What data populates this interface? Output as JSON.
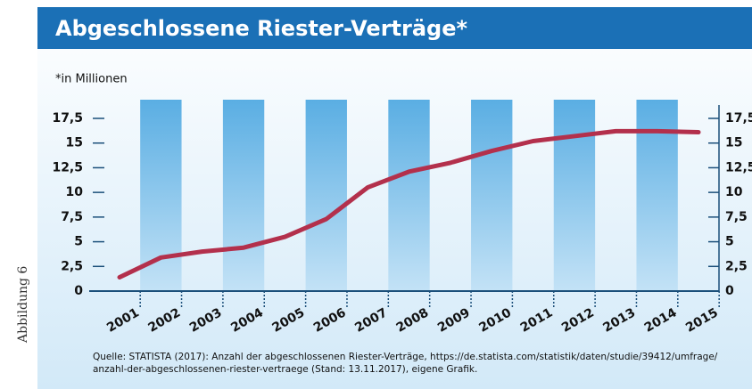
{
  "chart_data": {
    "type": "line",
    "title": "Abgeschlossene Riester-Verträge*",
    "subtitle": "*in Millionen",
    "figure_label": "Abbildung 6",
    "source": [
      "Quelle: STATISTA (2017): Anzahl der abgeschlossenen Riester-Verträge, https://de.statista.com/statistik/daten/studie/39412/umfrage/",
      "anzahl-der-abgeschlossenen-riester-vertraege (Stand: 13.11.2017), eigene Grafik."
    ],
    "categories": [
      "2001",
      "2002",
      "2003",
      "2004",
      "2005",
      "2006",
      "2007",
      "2008",
      "2009",
      "2010",
      "2011",
      "2012",
      "2013",
      "2014",
      "2015"
    ],
    "values": [
      1.4,
      3.4,
      4.0,
      4.4,
      5.5,
      7.3,
      10.5,
      12.1,
      13.0,
      14.2,
      15.2,
      15.7,
      16.2,
      16.2,
      16.1
    ],
    "color": "#b3304c",
    "ylim": [
      0,
      17.5
    ],
    "yticks": [
      0,
      {
        "value": 2.5,
        "label": "2,5"
      },
      5,
      {
        "value": 7.5,
        "label": "7,5"
      },
      10,
      {
        "value": 12.5,
        "label": "12,5"
      },
      15,
      {
        "value": 17.5,
        "label": "17,5"
      }
    ],
    "right_axis": true
  }
}
